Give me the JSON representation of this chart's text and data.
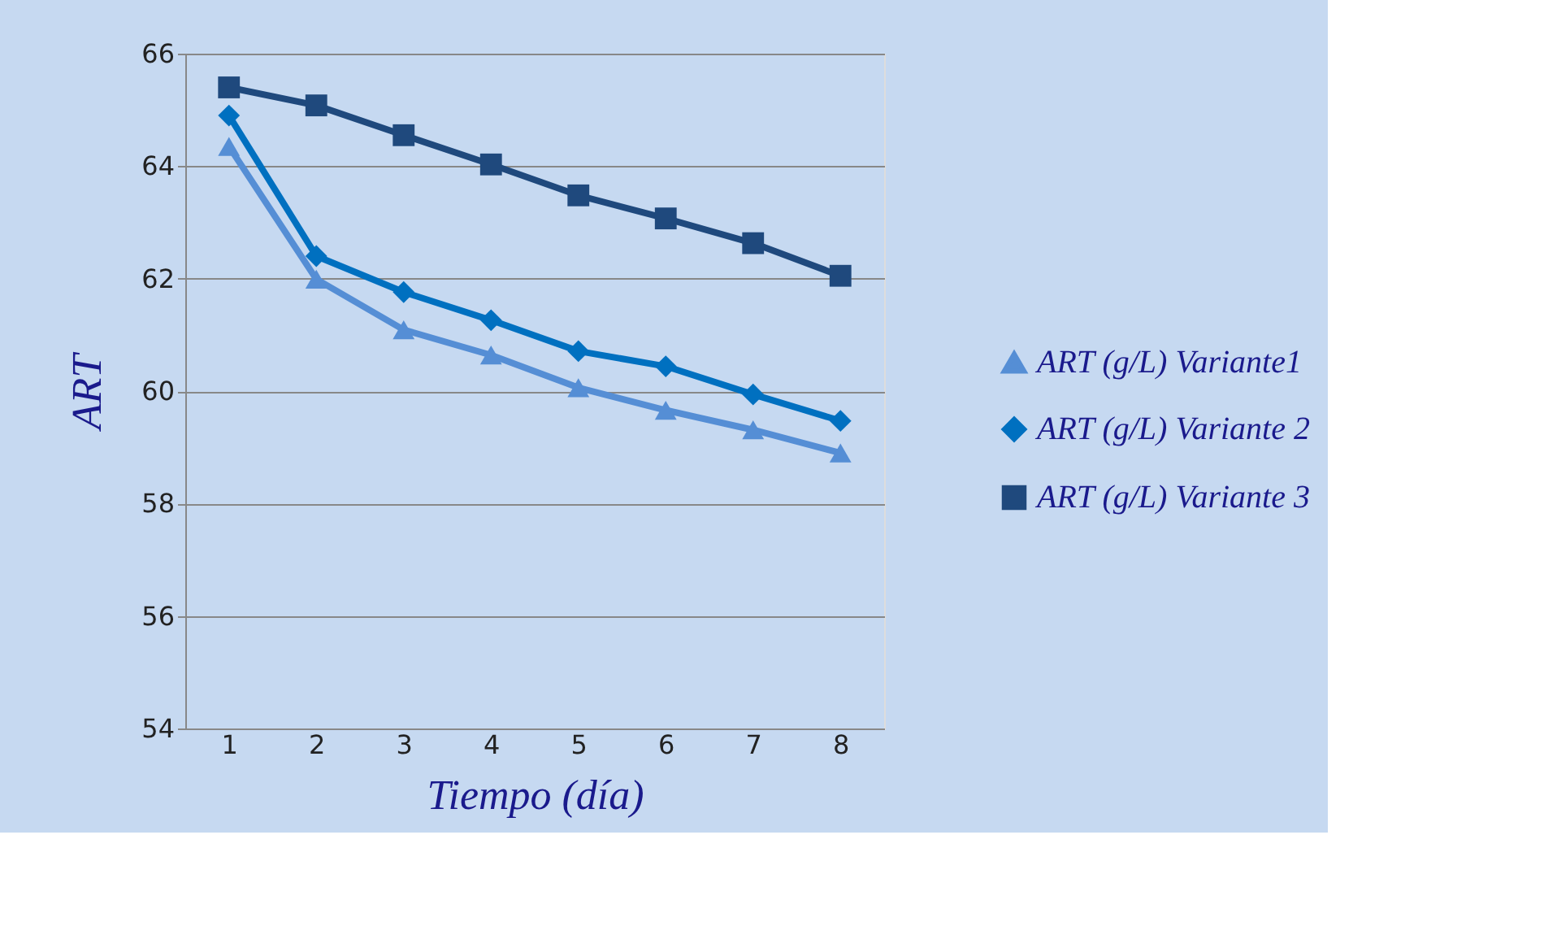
{
  "chart_data": {
    "type": "line",
    "xlabel": "Tiempo (día)",
    "ylabel": "ART",
    "categories": [
      "1",
      "2",
      "3",
      "4",
      "5",
      "6",
      "7",
      "8"
    ],
    "ylim": [
      54,
      66
    ],
    "yticks": [
      54,
      56,
      58,
      60,
      62,
      64,
      66
    ],
    "grid": "y",
    "legend": "right",
    "line_style": "solid",
    "series": [
      {
        "name": "ART (g/L) Variante1",
        "color": "#558ed5",
        "marker": "triangle",
        "values": [
          64.35,
          61.99,
          61.09,
          60.64,
          60.06,
          59.66,
          59.31,
          58.9
        ]
      },
      {
        "name": "ART (g/L) Variante 2",
        "color": "#0070c0",
        "marker": "diamond",
        "values": [
          64.9,
          62.4,
          61.76,
          61.26,
          60.71,
          60.44,
          59.94,
          59.47
        ]
      },
      {
        "name": "ART (g/L) Variante 3",
        "color": "#1f497d",
        "marker": "square",
        "values": [
          65.4,
          65.08,
          64.55,
          64.03,
          63.48,
          63.07,
          62.63,
          62.05
        ]
      }
    ]
  }
}
